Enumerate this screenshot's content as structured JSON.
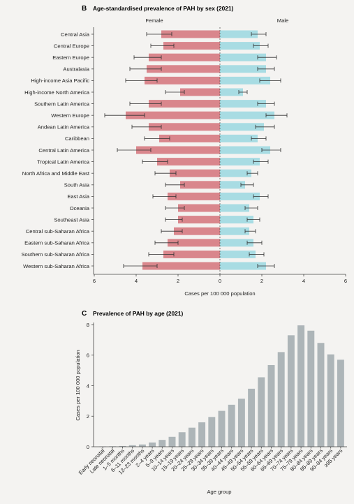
{
  "chart_data": [
    {
      "type": "bar",
      "panel_label": "B",
      "title": "Age-standardised prevalence of PAH by sex (2021)",
      "orientation": "horizontal-butterfly",
      "xlabel": "Cases per 100 000 population",
      "xlim": [
        -6,
        6
      ],
      "xticks": [
        "6",
        "4",
        "2",
        "0",
        "2",
        "4",
        "6"
      ],
      "grid": false,
      "legend": "none",
      "categories": [
        "Central Asia",
        "Central Europe",
        "Eastern Europe",
        "Australasia",
        "High-income Asia Pacific",
        "High-income North America",
        "Southern Latin America",
        "Western Europe",
        "Andean Latin America",
        "Caribbean",
        "Central Latin America",
        "Tropical Latin America",
        "North Africa and Middle East",
        "South Asia",
        "East Asia",
        "Oceania",
        "Southeast Asia",
        "Central sub-Saharan Africa",
        "Eastern sub-Saharan Africa",
        "Southern sub-Saharan Africa",
        "Western sub-Saharan Africa"
      ],
      "series": [
        {
          "name": "Female",
          "color": "#d9868c",
          "values": [
            2.8,
            2.7,
            3.4,
            3.5,
            3.6,
            1.9,
            3.4,
            4.5,
            3.4,
            2.9,
            4.0,
            3.0,
            2.4,
            1.9,
            2.5,
            2.0,
            2.0,
            2.2,
            2.5,
            2.7,
            3.7
          ],
          "lower": [
            2.3,
            2.2,
            2.8,
            2.8,
            3.0,
            1.7,
            2.8,
            3.6,
            2.8,
            2.4,
            3.3,
            2.5,
            2.1,
            1.7,
            2.1,
            1.7,
            1.8,
            1.8,
            2.0,
            2.2,
            3.0
          ],
          "upper": [
            3.5,
            3.3,
            4.1,
            4.3,
            4.5,
            2.6,
            4.3,
            5.5,
            4.2,
            3.6,
            4.9,
            3.7,
            3.1,
            2.6,
            3.2,
            2.6,
            2.6,
            2.8,
            3.1,
            3.4,
            4.6
          ]
        },
        {
          "name": "Male",
          "color": "#a8dce3",
          "values": [
            1.8,
            1.9,
            2.2,
            2.2,
            2.4,
            1.1,
            2.2,
            2.6,
            2.1,
            1.8,
            2.4,
            1.9,
            1.5,
            1.2,
            1.9,
            1.4,
            1.6,
            1.4,
            1.6,
            1.7,
            2.2
          ],
          "lower": [
            1.5,
            1.6,
            1.8,
            1.8,
            1.9,
            0.9,
            1.8,
            2.2,
            1.7,
            1.5,
            2.0,
            1.6,
            1.3,
            1.0,
            1.6,
            1.2,
            1.3,
            1.2,
            1.3,
            1.4,
            1.8
          ],
          "upper": [
            2.2,
            2.3,
            2.7,
            2.6,
            2.9,
            1.3,
            2.6,
            3.2,
            2.6,
            2.2,
            2.9,
            2.3,
            1.8,
            1.6,
            2.3,
            1.8,
            1.9,
            1.7,
            2.0,
            2.1,
            2.6
          ]
        }
      ]
    },
    {
      "type": "bar",
      "panel_label": "C",
      "title": "Prevalence of PAH by age (2021)",
      "xlabel": "Age group",
      "ylabel": "Cases per 100 000 population",
      "ylim": [
        0,
        8
      ],
      "yticks": [
        0,
        2,
        4,
        6,
        8
      ],
      "grid": false,
      "legend": "none",
      "bar_color": "#adb5b8",
      "categories": [
        "Early neonatal",
        "Late neonatal",
        "1–5 months",
        "6–11 months",
        "12–23 months",
        "2–4 years",
        "5–9 years",
        "10–14 years",
        "15–19 years",
        "20–24 years",
        "25–29 years",
        "30–34 years",
        "35–39 years",
        "40–44 years",
        "45–49 years",
        "50–54 years",
        "55–59 years",
        "60–64 years",
        "65–69 years",
        "70–74 years",
        "75–79 years",
        "80–84 years",
        "85–89 years",
        "90–94 years",
        "≥95 years"
      ],
      "values": [
        0.02,
        0.03,
        0.05,
        0.1,
        0.15,
        0.28,
        0.45,
        0.65,
        0.95,
        1.25,
        1.6,
        1.95,
        2.35,
        2.75,
        3.15,
        3.8,
        4.55,
        5.35,
        6.2,
        7.3,
        7.95,
        7.6,
        6.8,
        6.05,
        5.7
      ]
    }
  ]
}
